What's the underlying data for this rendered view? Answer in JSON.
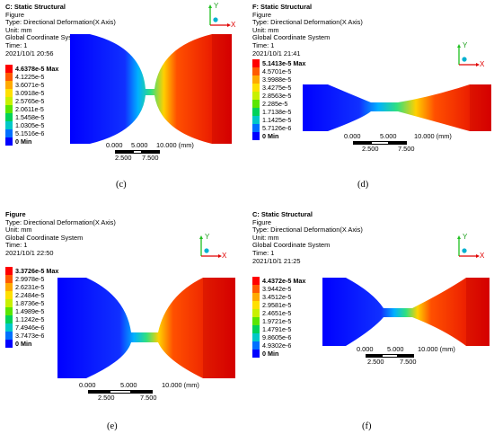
{
  "panels": [
    {
      "id": "c",
      "header": [
        "C: Static Structural",
        "Figure",
        "Type: Directional Deformation(X Axis)",
        "Unit: mm",
        "Global Coordinate System",
        "Time: 1",
        "2021/10/1 20:56"
      ],
      "header_bold_first": true,
      "legend": [
        "4.6378e-5 Max",
        "4.1225e-5",
        "3.6071e-5",
        "3.0918e-5",
        "2.5765e-5",
        "2.0611e-5",
        "1.5458e-5",
        "1.0305e-5",
        "5.1516e-6",
        "0 Min"
      ],
      "scale_top": [
        "0.000",
        "5.000",
        "10.000 (mm)"
      ],
      "scale_bottom": [
        "2.500",
        "7.500"
      ],
      "axis_y": "Y",
      "axis_x": "X",
      "caption": "(c)"
    },
    {
      "id": "d",
      "header": [
        "F: Static Structural",
        "Figure",
        "Type: Directional Deformation(X Axis)",
        "Unit: mm",
        "Global Coordinate System",
        "Time: 1",
        "2021/10/1 21:41"
      ],
      "header_bold_first": true,
      "legend": [
        "5.1413e-5 Max",
        "4.5701e-5",
        "3.9988e-5",
        "3.4275e-5",
        "2.8563e-5",
        "2.285e-5",
        "1.7138e-5",
        "1.1425e-5",
        "5.7126e-6",
        "0 Min"
      ],
      "scale_top": [
        "0.000",
        "5.000",
        "10.000 (mm)"
      ],
      "scale_bottom": [
        "2.500",
        "7.500"
      ],
      "axis_y": "Y",
      "axis_x": "X",
      "caption": "(d)"
    },
    {
      "id": "e",
      "header": [
        "Figure",
        "Type: Directional Deformation(X Axis)",
        "Unit: mm",
        "Global Coordinate System",
        "Time: 1",
        "2021/10/1 22:50"
      ],
      "header_bold_first": true,
      "legend": [
        "3.3726e-5 Max",
        "2.9978e-5",
        "2.6231e-5",
        "2.2484e-5",
        "1.8736e-5",
        "1.4989e-5",
        "1.1242e-5",
        "7.4946e-6",
        "3.7473e-6",
        "0 Min"
      ],
      "scale_top": [
        "0.000",
        "5.000",
        "10.000 (mm)"
      ],
      "scale_bottom": [
        "2.500",
        "7.500"
      ],
      "axis_y": "Y",
      "axis_x": "X",
      "caption": "(e)"
    },
    {
      "id": "f",
      "header": [
        "C: Static Structural",
        "Figure",
        "Type: Directional Deformation(X Axis)",
        "Unit: mm",
        "Global Coordinate System",
        "Time: 1",
        "2021/10/1 21:25"
      ],
      "header_bold_first": true,
      "legend": [
        "4.4372e-5 Max",
        "3.9442e-5",
        "3.4512e-5",
        "2.9581e-5",
        "2.4651e-5",
        "1.9721e-5",
        "1.4791e-5",
        "9.8605e-6",
        "4.9302e-6",
        "0 Min"
      ],
      "scale_top": [
        "0.000",
        "5.000",
        "10.000 (mm)"
      ],
      "scale_bottom": [
        "2.500",
        "7.500"
      ],
      "axis_y": "Y",
      "axis_x": "X",
      "caption": "(f)"
    }
  ],
  "legend_colors": [
    "#ff0000",
    "#ff5a00",
    "#ffaa00",
    "#ffe000",
    "#c8f000",
    "#5ae600",
    "#00d25a",
    "#00c8c8",
    "#0070ff",
    "#0000ff"
  ]
}
